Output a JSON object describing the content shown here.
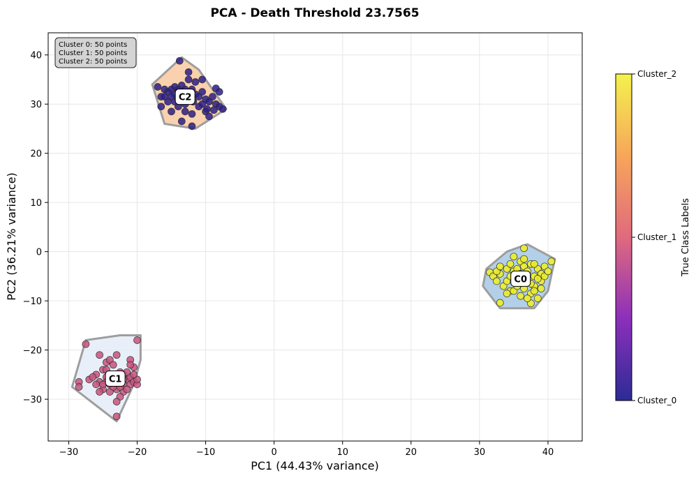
{
  "chart_data": {
    "type": "scatter",
    "title": "PCA - Death Threshold 23.7565",
    "xlabel": "PC1 (44.43% variance)",
    "ylabel": "PC2 (36.21% variance)",
    "xlim": [
      -33,
      45
    ],
    "ylim": [
      -38.5,
      44.5
    ],
    "xticks": [
      -30,
      -20,
      -10,
      0,
      10,
      20,
      30,
      40
    ],
    "yticks": [
      -30,
      -20,
      -10,
      0,
      10,
      20,
      30,
      40
    ],
    "xtick_labels": [
      "−30",
      "−20",
      "−10",
      "0",
      "10",
      "20",
      "30",
      "40"
    ],
    "ytick_labels": [
      "−30",
      "−20",
      "−10",
      "0",
      "10",
      "20",
      "30",
      "40"
    ],
    "grid": true,
    "info_box": [
      "Cluster 0: 50 points",
      "Cluster 1: 50 points",
      "Cluster 2: 50 points"
    ],
    "colorbar": {
      "label": "True Class Labels",
      "ticks": [
        "Cluster_2",
        "Cluster_1",
        "Cluster_0"
      ],
      "colors": [
        "#f0f921",
        "#fca636",
        "#e16462",
        "#b12a90",
        "#6a00a8",
        "#0d0887"
      ]
    },
    "clusters": [
      {
        "name": "C0",
        "label_pos": [
          36,
          -5.5
        ],
        "hull_fill": "#a6c8e4",
        "point_color": "#f0f020",
        "hull": [
          [
            33,
            -11.5
          ],
          [
            38,
            -11.5
          ],
          [
            40,
            -8
          ],
          [
            41,
            -1.5
          ],
          [
            37,
            1.5
          ],
          [
            34,
            0
          ],
          [
            31,
            -3.5
          ],
          [
            30.5,
            -7
          ]
        ],
        "points": [
          [
            31.5,
            -4.2
          ],
          [
            32,
            -5
          ],
          [
            32.5,
            -6
          ],
          [
            33,
            -4.5
          ],
          [
            33,
            -10.4
          ],
          [
            33.5,
            -7
          ],
          [
            34,
            -3.5
          ],
          [
            34,
            -6
          ],
          [
            34.5,
            -2.5
          ],
          [
            34.5,
            -8
          ],
          [
            35,
            -1
          ],
          [
            35,
            -4
          ],
          [
            35,
            -6
          ],
          [
            35.5,
            -3.5
          ],
          [
            35.5,
            -5.5
          ],
          [
            36,
            -2
          ],
          [
            36,
            -4.5
          ],
          [
            36,
            -6.5
          ],
          [
            36.5,
            -3
          ],
          [
            36.5,
            -7.5
          ],
          [
            36.5,
            0.7
          ],
          [
            37,
            -4
          ],
          [
            37,
            -6
          ],
          [
            37.5,
            -2.5
          ],
          [
            37.5,
            -8.5
          ],
          [
            37.5,
            -10.5
          ],
          [
            38,
            -5
          ],
          [
            38,
            -7
          ],
          [
            38.5,
            -3.5
          ],
          [
            38.5,
            -9.5
          ],
          [
            39,
            -4.5
          ],
          [
            39,
            -6
          ],
          [
            39.5,
            -3
          ],
          [
            39.5,
            -5
          ],
          [
            40,
            -4
          ],
          [
            40.5,
            -2
          ],
          [
            34,
            -8.5
          ],
          [
            35,
            -8
          ],
          [
            36,
            -9
          ],
          [
            37,
            -9.5
          ],
          [
            38,
            -8
          ],
          [
            39,
            -7.5
          ],
          [
            32.5,
            -4
          ],
          [
            33,
            -3
          ],
          [
            34.5,
            -5
          ],
          [
            36.5,
            -1.5
          ],
          [
            38,
            -2.5
          ],
          [
            38.5,
            -5.5
          ],
          [
            37.5,
            -6.5
          ],
          [
            35.5,
            -7
          ]
        ]
      },
      {
        "name": "C1",
        "label_pos": [
          -23.2,
          -25.8
        ],
        "hull_fill": "#e5ecf8",
        "point_color": "#c8527e",
        "hull": [
          [
            -27.5,
            -18
          ],
          [
            -22.5,
            -17
          ],
          [
            -19.5,
            -17
          ],
          [
            -19.5,
            -22
          ],
          [
            -20.5,
            -27
          ],
          [
            -23,
            -34.5
          ],
          [
            -29.5,
            -27.5
          ]
        ],
        "points": [
          [
            -27.5,
            -18.8
          ],
          [
            -25.5,
            -21
          ],
          [
            -24.5,
            -22.5
          ],
          [
            -24,
            -22
          ],
          [
            -23,
            -21
          ],
          [
            -21,
            -22
          ],
          [
            -20.5,
            -23.5
          ],
          [
            -20,
            -18
          ],
          [
            -26,
            -25
          ],
          [
            -25.5,
            -26.5
          ],
          [
            -25,
            -24
          ],
          [
            -24.5,
            -25.5
          ],
          [
            -24,
            -27
          ],
          [
            -23.5,
            -26
          ],
          [
            -23,
            -25
          ],
          [
            -22.5,
            -26.5
          ],
          [
            -22,
            -27
          ],
          [
            -21.5,
            -26
          ],
          [
            -21,
            -25.5
          ],
          [
            -21,
            -27
          ],
          [
            -20.5,
            -26.5
          ],
          [
            -20,
            -27
          ],
          [
            -25,
            -28
          ],
          [
            -24,
            -28.5
          ],
          [
            -23,
            -28
          ],
          [
            -22,
            -28.5
          ],
          [
            -22.5,
            -29.5
          ],
          [
            -23,
            -30.5
          ],
          [
            -21.5,
            -28
          ],
          [
            -23,
            -33.5
          ],
          [
            -26,
            -27
          ],
          [
            -25.5,
            -28.5
          ],
          [
            -24.5,
            -26.5
          ],
          [
            -27,
            -26
          ],
          [
            -28.5,
            -26.5
          ],
          [
            -28.5,
            -27.5
          ],
          [
            -22,
            -25
          ],
          [
            -21.5,
            -24.5
          ],
          [
            -20,
            -26
          ],
          [
            -23.5,
            -27.5
          ],
          [
            -24,
            -25
          ],
          [
            -22.5,
            -24.5
          ],
          [
            -21,
            -23
          ],
          [
            -26.5,
            -25.5
          ],
          [
            -25,
            -27
          ],
          [
            -22,
            -26
          ],
          [
            -24.5,
            -24
          ],
          [
            -23.5,
            -23
          ],
          [
            -22.5,
            -27.5
          ],
          [
            -20.5,
            -25
          ]
        ]
      },
      {
        "name": "C2",
        "label_pos": [
          -13,
          31.5
        ],
        "hull_fill": "#f9c9a0",
        "point_color": "#2b1d8a",
        "hull": [
          [
            -17.8,
            34
          ],
          [
            -13.5,
            39.5
          ],
          [
            -11,
            37
          ],
          [
            -7,
            29
          ],
          [
            -11.5,
            25
          ],
          [
            -16,
            26
          ]
        ],
        "points": [
          [
            -13.8,
            38.8
          ],
          [
            -12.5,
            36.5
          ],
          [
            -16,
            33
          ],
          [
            -17,
            33.5
          ],
          [
            -16.5,
            31.5
          ],
          [
            -15.5,
            32.5
          ],
          [
            -15,
            33
          ],
          [
            -14.5,
            33.5
          ],
          [
            -14.5,
            32
          ],
          [
            -14,
            31
          ],
          [
            -13.5,
            32.5
          ],
          [
            -13,
            33
          ],
          [
            -12.5,
            31.5
          ],
          [
            -12,
            33
          ],
          [
            -11.5,
            32
          ],
          [
            -11,
            31.5
          ],
          [
            -10.5,
            32.5
          ],
          [
            -10,
            31
          ],
          [
            -9.5,
            30.5
          ],
          [
            -9,
            31.5
          ],
          [
            -8.5,
            30
          ],
          [
            -8,
            29.5
          ],
          [
            -7.5,
            29
          ],
          [
            -8,
            32.5
          ],
          [
            -8.5,
            33.2
          ],
          [
            -16.5,
            29.5
          ],
          [
            -15,
            28.5
          ],
          [
            -14,
            29.5
          ],
          [
            -13,
            28.5
          ],
          [
            -12,
            28
          ],
          [
            -11,
            29.5
          ],
          [
            -10,
            28.5
          ],
          [
            -9.5,
            27.5
          ],
          [
            -12,
            25.5
          ],
          [
            -13.5,
            26.5
          ],
          [
            -10.5,
            30
          ],
          [
            -11.5,
            34.5
          ],
          [
            -12.5,
            35
          ],
          [
            -10.5,
            35
          ],
          [
            -13,
            30
          ],
          [
            -15.5,
            30.5
          ],
          [
            -14.5,
            30.5
          ],
          [
            -16,
            31.5
          ],
          [
            -15,
            31.5
          ],
          [
            -14,
            33
          ],
          [
            -13.5,
            33.8
          ],
          [
            -12.8,
            32.2
          ],
          [
            -11.8,
            30.5
          ],
          [
            -9.8,
            29
          ],
          [
            -8.8,
            28.8
          ]
        ]
      }
    ]
  }
}
